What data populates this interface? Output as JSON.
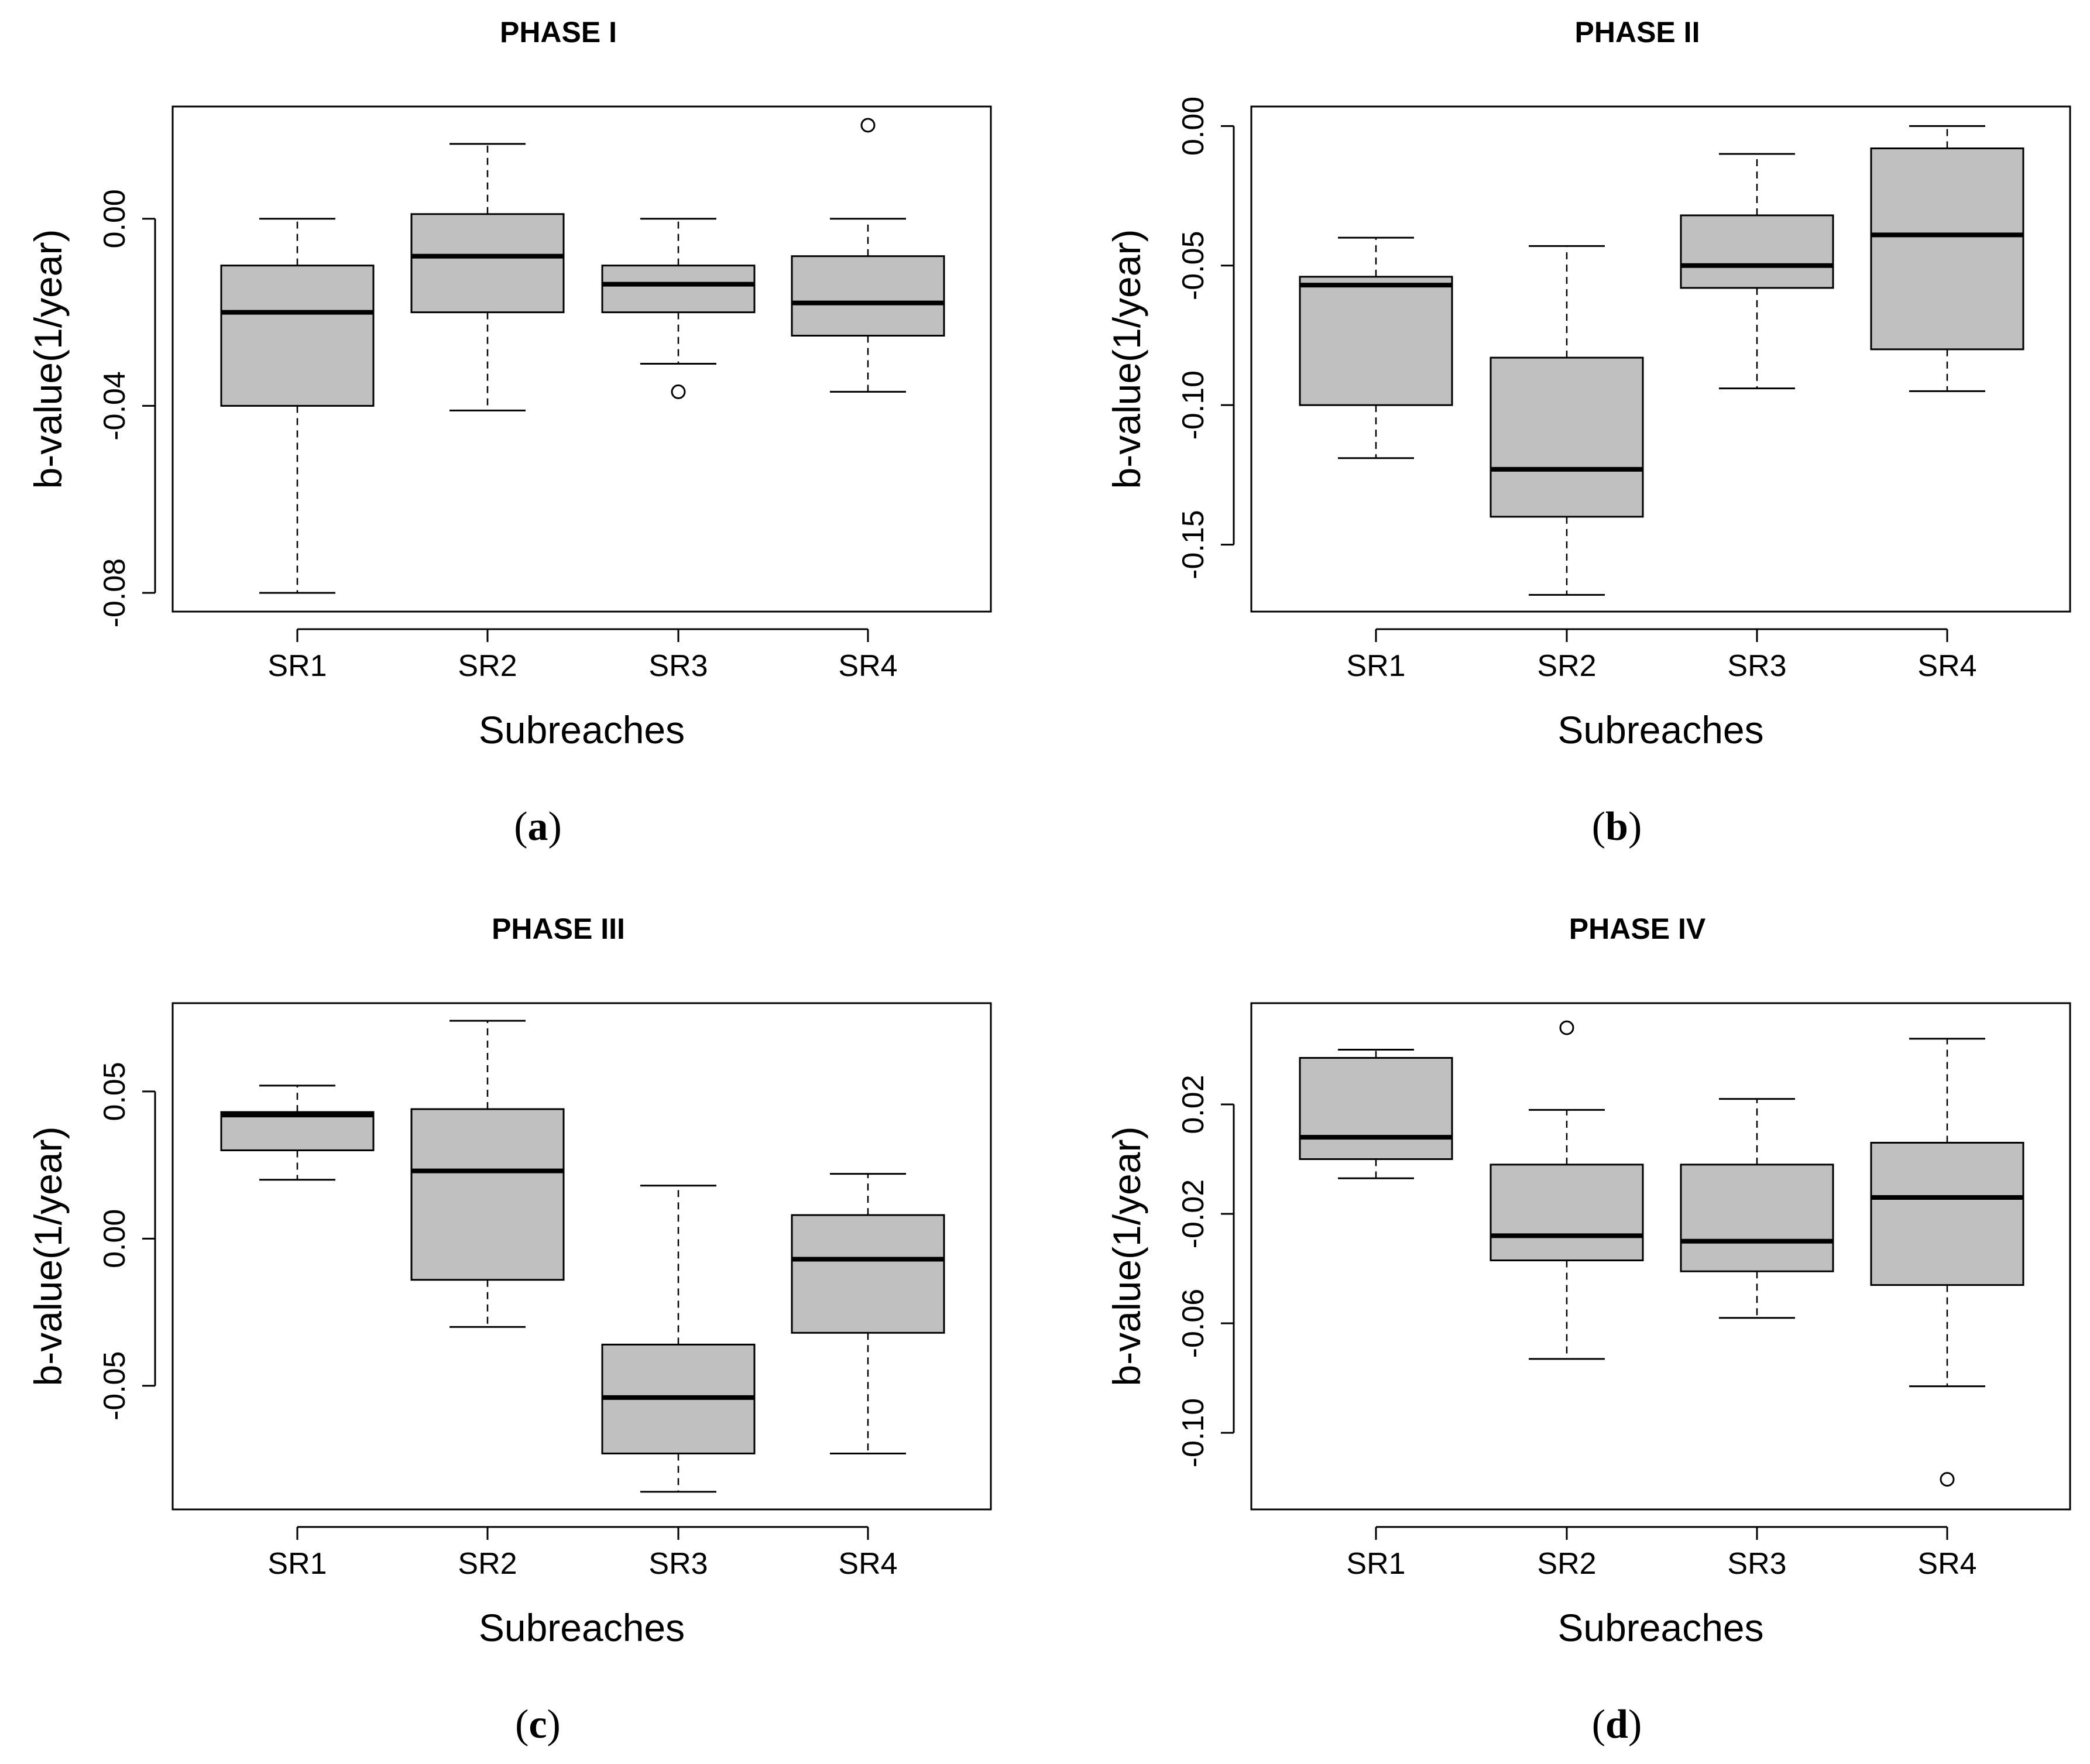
{
  "colors": {
    "box_fill": "#c0c0c0",
    "line": "#000000",
    "background": "#ffffff"
  },
  "chart_data": [
    {
      "type": "boxplot",
      "title": "PHASE I",
      "caption": "a",
      "xlabel": "Subreaches",
      "ylabel": "b-value(1/year)",
      "categories": [
        "SR1",
        "SR2",
        "SR3",
        "SR4"
      ],
      "ylim": [
        -0.084,
        0.024
      ],
      "yticks": [
        -0.08,
        -0.04,
        0.0
      ],
      "ytick_labels": [
        "-0.08",
        "-0.04",
        "0.00"
      ],
      "boxes": [
        {
          "category": "SR1",
          "whisker_low": -0.08,
          "q1": -0.04,
          "median": -0.02,
          "q3": -0.01,
          "whisker_high": 0.0,
          "outliers": []
        },
        {
          "category": "SR2",
          "whisker_low": -0.041,
          "q1": -0.02,
          "median": -0.008,
          "q3": 0.001,
          "whisker_high": 0.016,
          "outliers": []
        },
        {
          "category": "SR3",
          "whisker_low": -0.031,
          "q1": -0.02,
          "median": -0.014,
          "q3": -0.01,
          "whisker_high": 0.0,
          "outliers": [
            -0.037
          ]
        },
        {
          "category": "SR4",
          "whisker_low": -0.037,
          "q1": -0.025,
          "median": -0.018,
          "q3": -0.008,
          "whisker_high": 0.0,
          "outliers": [
            0.02
          ]
        }
      ]
    },
    {
      "type": "boxplot",
      "title": "PHASE II",
      "caption": "b",
      "xlabel": "Subreaches",
      "ylabel": "b-value(1/year)",
      "categories": [
        "SR1",
        "SR2",
        "SR3",
        "SR4"
      ],
      "ylim": [
        -0.174,
        0.007
      ],
      "yticks": [
        -0.15,
        -0.1,
        -0.05,
        0.0
      ],
      "ytick_labels": [
        "-0.15",
        "-0.10",
        "-0.05",
        "0.00"
      ],
      "boxes": [
        {
          "category": "SR1",
          "whisker_low": -0.119,
          "q1": -0.1,
          "median": -0.057,
          "q3": -0.054,
          "whisker_high": -0.04,
          "outliers": []
        },
        {
          "category": "SR2",
          "whisker_low": -0.168,
          "q1": -0.14,
          "median": -0.123,
          "q3": -0.083,
          "whisker_high": -0.043,
          "outliers": []
        },
        {
          "category": "SR3",
          "whisker_low": -0.094,
          "q1": -0.058,
          "median": -0.05,
          "q3": -0.032,
          "whisker_high": -0.01,
          "outliers": []
        },
        {
          "category": "SR4",
          "whisker_low": -0.095,
          "q1": -0.08,
          "median": -0.039,
          "q3": -0.008,
          "whisker_high": 0.0,
          "outliers": []
        }
      ]
    },
    {
      "type": "boxplot",
      "title": "PHASE III",
      "caption": "c",
      "xlabel": "Subreaches",
      "ylabel": "b-value(1/year)",
      "categories": [
        "SR1",
        "SR2",
        "SR3",
        "SR4"
      ],
      "ylim": [
        -0.092,
        0.08
      ],
      "yticks": [
        -0.05,
        0.0,
        0.05
      ],
      "ytick_labels": [
        "-0.05",
        "0.00",
        "0.05"
      ],
      "boxes": [
        {
          "category": "SR1",
          "whisker_low": 0.02,
          "q1": 0.03,
          "median": 0.042,
          "q3": 0.043,
          "whisker_high": 0.052,
          "outliers": []
        },
        {
          "category": "SR2",
          "whisker_low": -0.03,
          "q1": -0.014,
          "median": 0.023,
          "q3": 0.044,
          "whisker_high": 0.074,
          "outliers": []
        },
        {
          "category": "SR3",
          "whisker_low": -0.086,
          "q1": -0.073,
          "median": -0.054,
          "q3": -0.036,
          "whisker_high": 0.018,
          "outliers": []
        },
        {
          "category": "SR4",
          "whisker_low": -0.073,
          "q1": -0.032,
          "median": -0.007,
          "q3": 0.008,
          "whisker_high": 0.022,
          "outliers": []
        }
      ]
    },
    {
      "type": "boxplot",
      "title": "PHASE IV",
      "caption": "d",
      "xlabel": "Subreaches",
      "ylabel": "b-value(1/year)",
      "categories": [
        "SR1",
        "SR2",
        "SR3",
        "SR4"
      ],
      "ylim": [
        -0.128,
        0.057
      ],
      "yticks": [
        -0.1,
        -0.06,
        -0.02,
        0.02
      ],
      "ytick_labels": [
        "-0.10",
        "-0.06",
        "-0.02",
        "0.02"
      ],
      "boxes": [
        {
          "category": "SR1",
          "whisker_low": -0.007,
          "q1": 0.0,
          "median": 0.008,
          "q3": 0.037,
          "whisker_high": 0.04,
          "outliers": []
        },
        {
          "category": "SR2",
          "whisker_low": -0.073,
          "q1": -0.037,
          "median": -0.028,
          "q3": -0.002,
          "whisker_high": 0.018,
          "outliers": [
            0.048
          ]
        },
        {
          "category": "SR3",
          "whisker_low": -0.058,
          "q1": -0.041,
          "median": -0.03,
          "q3": -0.002,
          "whisker_high": 0.022,
          "outliers": []
        },
        {
          "category": "SR4",
          "whisker_low": -0.083,
          "q1": -0.046,
          "median": -0.014,
          "q3": 0.006,
          "whisker_high": 0.044,
          "outliers": [
            -0.117
          ]
        }
      ]
    }
  ]
}
